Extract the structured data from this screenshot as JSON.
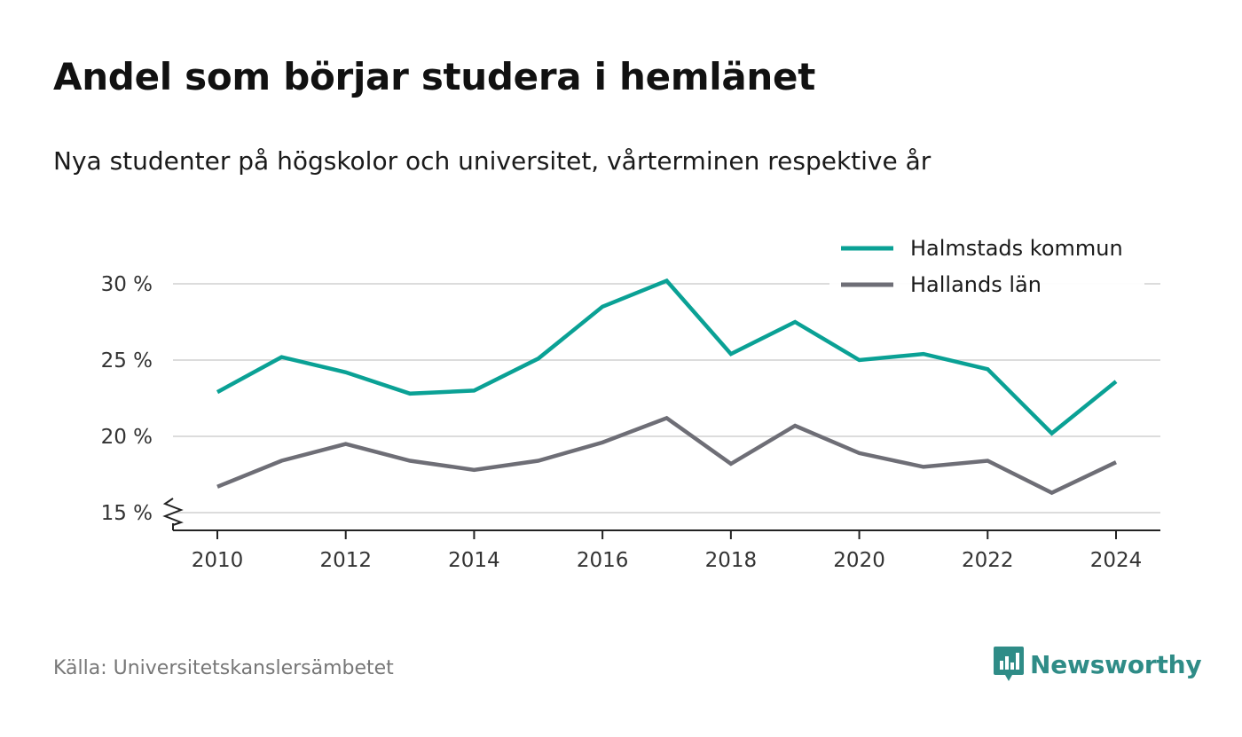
{
  "header": {
    "title": "Andel som börjar studera i hemlänet",
    "subtitle": "Nya studenter på högskolor och universitet, vårterminen respektive år"
  },
  "footer": {
    "source": "Källa: Universitetskanslersämbetet",
    "brand": "Newsworthy",
    "brand_icon": "newsworthy-logo-icon",
    "brand_color": "#2f8c87"
  },
  "chart_data": {
    "type": "line",
    "title": "Andel som börjar studera i hemlänet",
    "subtitle": "Nya studenter på högskolor och universitet, vårterminen respektive år",
    "xlabel": "",
    "ylabel": "",
    "x": [
      2010,
      2011,
      2012,
      2013,
      2014,
      2015,
      2016,
      2017,
      2018,
      2019,
      2020,
      2021,
      2022,
      2023,
      2024
    ],
    "x_ticks": [
      "2010",
      "2012",
      "2014",
      "2016",
      "2018",
      "2020",
      "2022",
      "2024"
    ],
    "y_ticks": [
      "15 %",
      "20 %",
      "25 %",
      "30 %"
    ],
    "ylim": [
      15,
      30
    ],
    "y_axis_break": true,
    "grid": true,
    "legend_position": "top-right",
    "series": [
      {
        "name": "Halmstads kommun",
        "color": "#0aa195",
        "values": [
          22.9,
          25.2,
          24.2,
          22.8,
          23.0,
          25.1,
          28.5,
          30.2,
          25.4,
          27.5,
          25.0,
          25.4,
          24.4,
          20.2,
          23.6
        ]
      },
      {
        "name": "Hallands län",
        "color": "#6e6e76",
        "values": [
          16.7,
          18.4,
          19.5,
          18.4,
          17.8,
          18.4,
          19.6,
          21.2,
          18.2,
          20.7,
          18.9,
          18.0,
          18.4,
          16.3,
          18.3
        ]
      }
    ]
  }
}
